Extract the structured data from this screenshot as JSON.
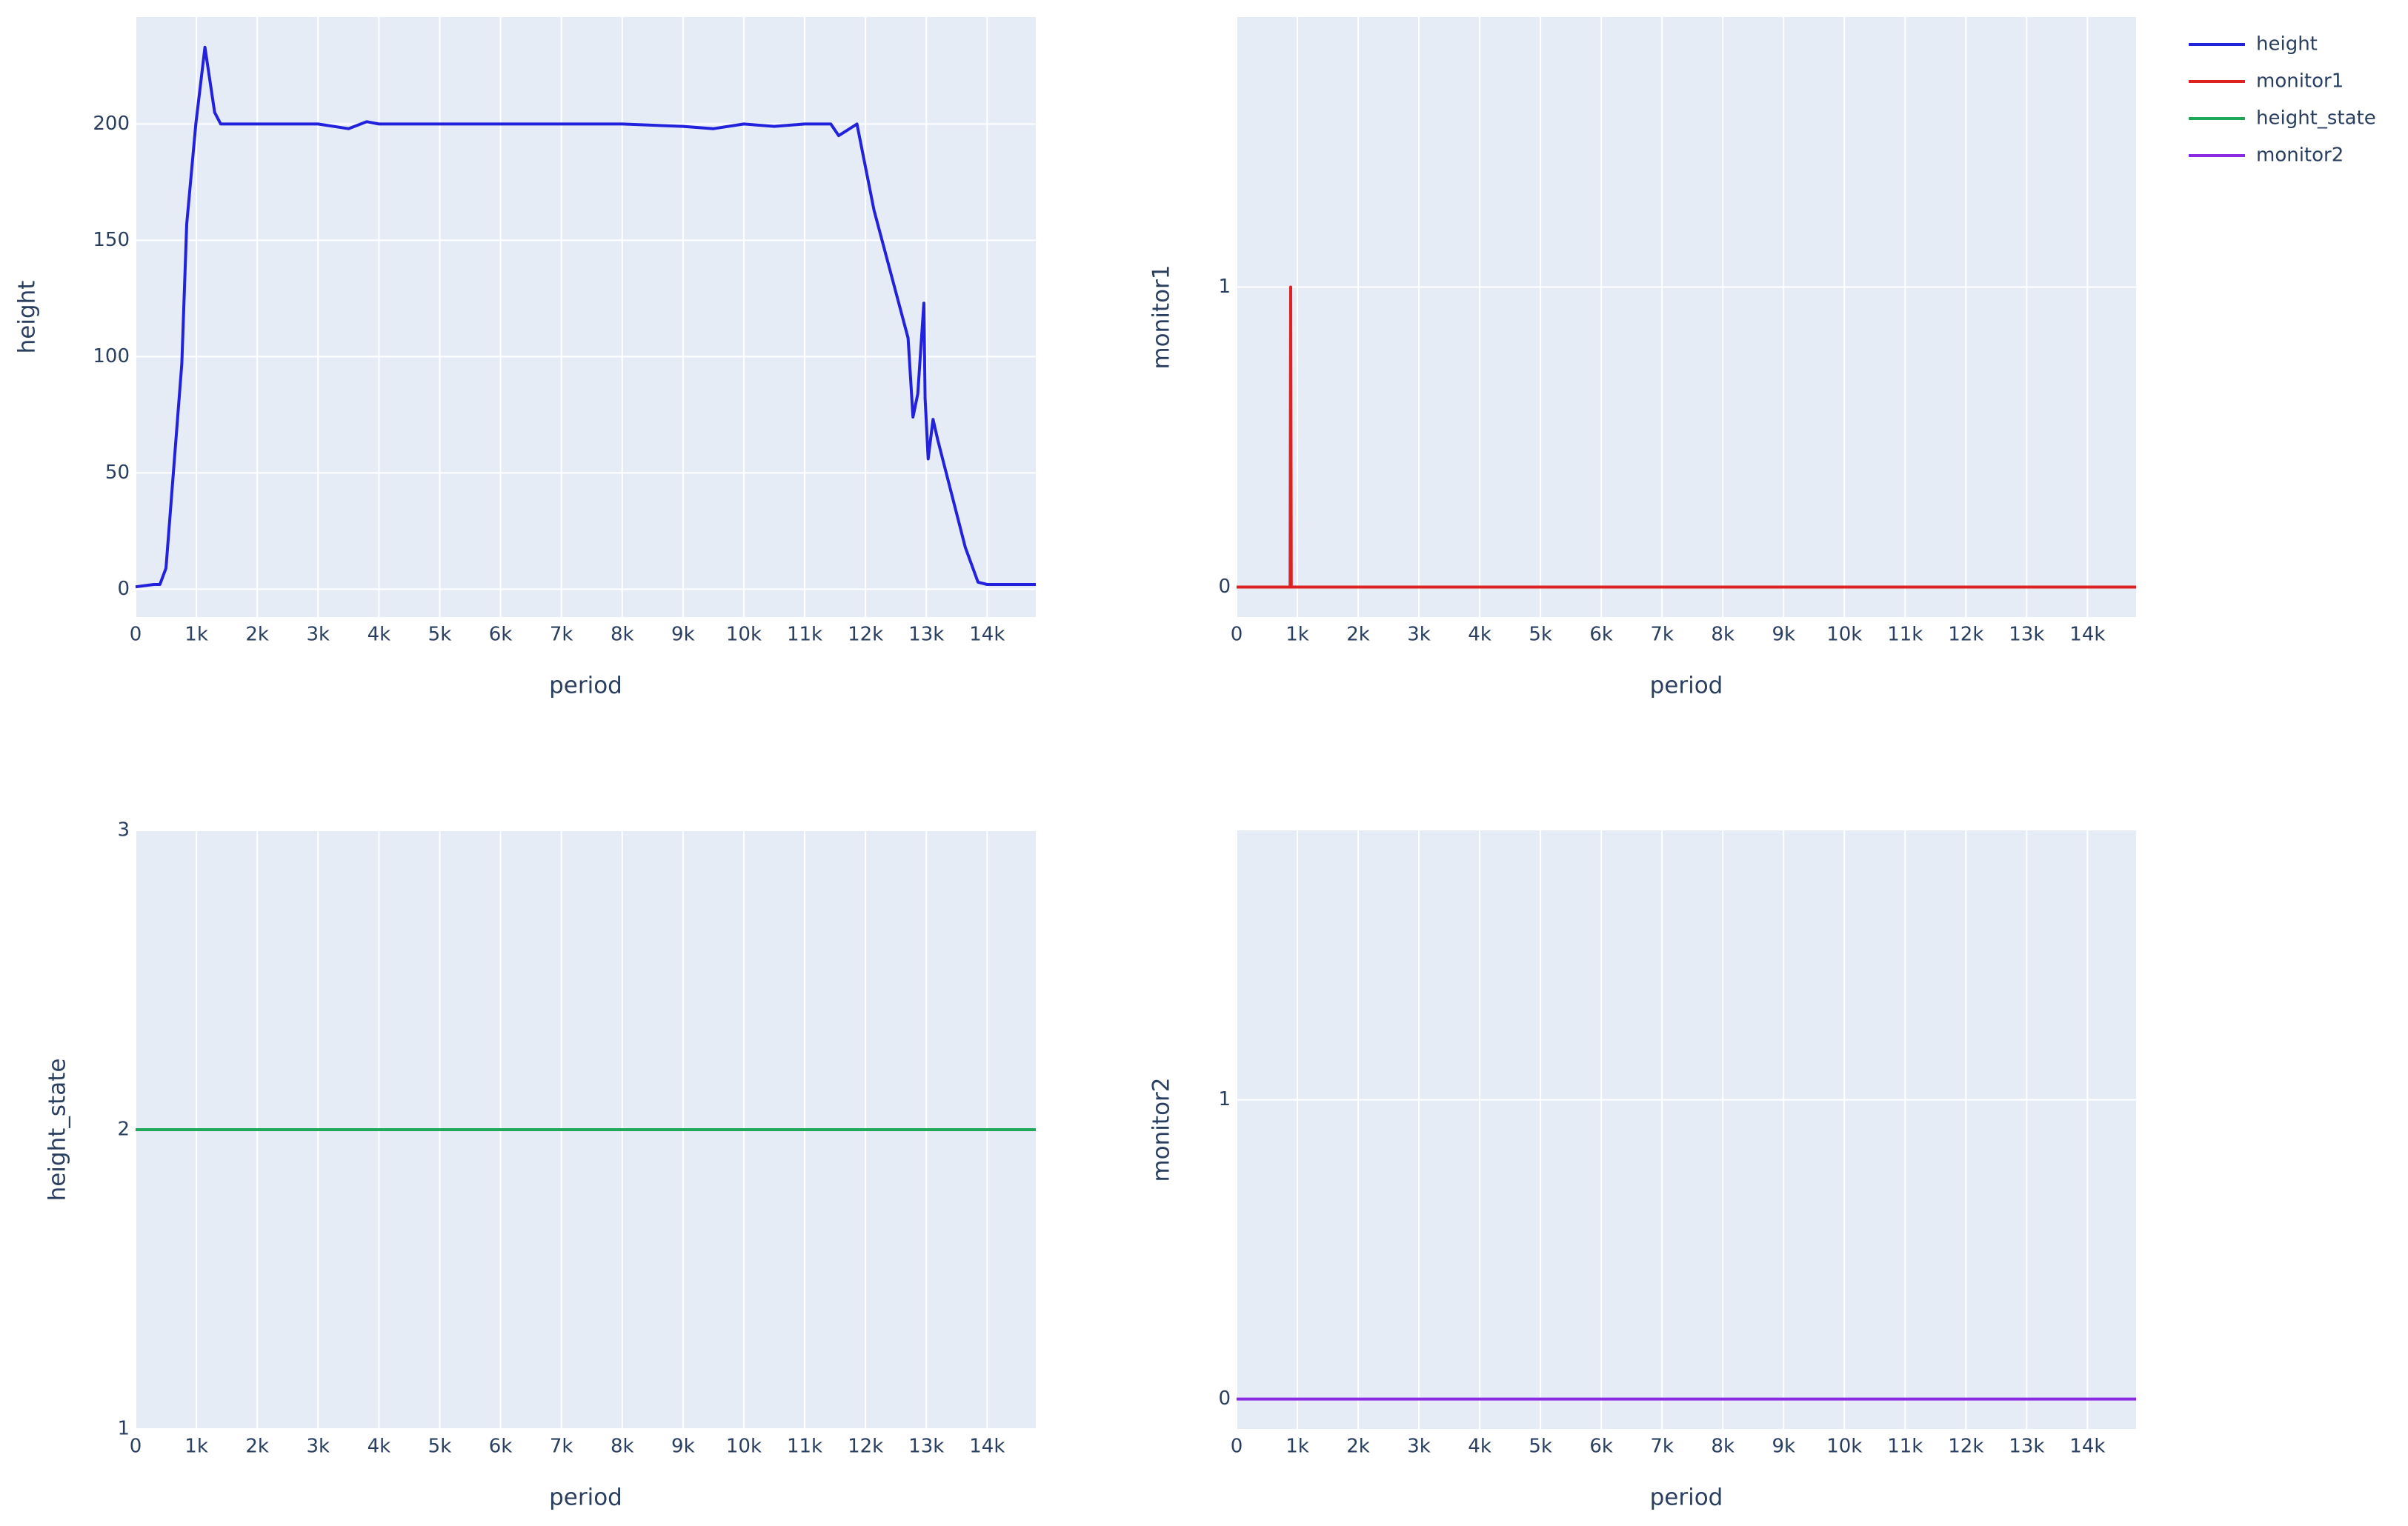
{
  "chart_data": [
    {
      "type": "line",
      "x_label": "period",
      "y_label": "height",
      "x": [
        0,
        300,
        400,
        500,
        760,
        840,
        990,
        1140,
        1300,
        1400,
        2000,
        3000,
        3500,
        3800,
        4000,
        5000,
        6000,
        7000,
        8000,
        9000,
        9500,
        10000,
        10500,
        11000,
        11430,
        11560,
        11860,
        12140,
        12700,
        12780,
        12860,
        12960,
        12980,
        13030,
        13110,
        13190,
        13640,
        13850,
        14000,
        14800
      ],
      "series": [
        {
          "name": "height",
          "color": "#2222dd",
          "values": [
            1,
            2,
            2,
            9,
            97,
            157,
            200,
            233,
            205,
            200,
            200,
            200,
            198,
            201,
            200,
            200,
            200,
            200,
            200,
            199,
            198,
            200,
            199,
            200,
            200,
            195,
            200,
            163,
            108,
            74,
            84,
            123,
            82,
            56,
            73,
            64,
            18,
            3,
            2,
            2
          ]
        }
      ],
      "xlim": [
        0,
        14800
      ],
      "ylim": [
        -12,
        246
      ],
      "xticks": [
        0,
        {
          "value": 1000,
          "label": "1k"
        },
        {
          "value": 2000,
          "label": "2k"
        },
        {
          "value": 3000,
          "label": "3k"
        },
        {
          "value": 4000,
          "label": "4k"
        },
        {
          "value": 5000,
          "label": "5k"
        },
        {
          "value": 6000,
          "label": "6k"
        },
        {
          "value": 7000,
          "label": "7k"
        },
        {
          "value": 8000,
          "label": "8k"
        },
        {
          "value": 9000,
          "label": "9k"
        },
        {
          "value": 10000,
          "label": "10k"
        },
        {
          "value": 11000,
          "label": "11k"
        },
        {
          "value": 12000,
          "label": "12k"
        },
        {
          "value": 13000,
          "label": "13k"
        },
        {
          "value": 14000,
          "label": "14k"
        }
      ],
      "yticks": [
        0,
        50,
        100,
        150,
        200
      ],
      "grid": true
    },
    {
      "type": "line",
      "x_label": "period",
      "y_label": "monitor1",
      "x": [
        0,
        880,
        890,
        900,
        14800
      ],
      "series": [
        {
          "name": "monitor1",
          "color": "#dd2222",
          "values": [
            0,
            0,
            1,
            0,
            0
          ]
        }
      ],
      "xlim": [
        0,
        14800
      ],
      "ylim": [
        -0.1,
        1.9
      ],
      "xticks": [
        0,
        {
          "value": 1000,
          "label": "1k"
        },
        {
          "value": 2000,
          "label": "2k"
        },
        {
          "value": 3000,
          "label": "3k"
        },
        {
          "value": 4000,
          "label": "4k"
        },
        {
          "value": 5000,
          "label": "5k"
        },
        {
          "value": 6000,
          "label": "6k"
        },
        {
          "value": 7000,
          "label": "7k"
        },
        {
          "value": 8000,
          "label": "8k"
        },
        {
          "value": 9000,
          "label": "9k"
        },
        {
          "value": 10000,
          "label": "10k"
        },
        {
          "value": 11000,
          "label": "11k"
        },
        {
          "value": 12000,
          "label": "12k"
        },
        {
          "value": 13000,
          "label": "13k"
        },
        {
          "value": 14000,
          "label": "14k"
        }
      ],
      "yticks": [
        0,
        1
      ],
      "grid": true
    },
    {
      "type": "line",
      "x_label": "period",
      "y_label": "height_state",
      "x": [
        0,
        14800
      ],
      "series": [
        {
          "name": "height_state",
          "color": "#1fa85a",
          "values": [
            2,
            2
          ]
        }
      ],
      "xlim": [
        0,
        14800
      ],
      "ylim": [
        1,
        3
      ],
      "xticks": [
        0,
        {
          "value": 1000,
          "label": "1k"
        },
        {
          "value": 2000,
          "label": "2k"
        },
        {
          "value": 3000,
          "label": "3k"
        },
        {
          "value": 4000,
          "label": "4k"
        },
        {
          "value": 5000,
          "label": "5k"
        },
        {
          "value": 6000,
          "label": "6k"
        },
        {
          "value": 7000,
          "label": "7k"
        },
        {
          "value": 8000,
          "label": "8k"
        },
        {
          "value": 9000,
          "label": "9k"
        },
        {
          "value": 10000,
          "label": "10k"
        },
        {
          "value": 11000,
          "label": "11k"
        },
        {
          "value": 12000,
          "label": "12k"
        },
        {
          "value": 13000,
          "label": "13k"
        },
        {
          "value": 14000,
          "label": "14k"
        }
      ],
      "yticks": [
        1,
        2,
        3
      ],
      "grid": true
    },
    {
      "type": "line",
      "x_label": "period",
      "y_label": "monitor2",
      "x": [
        0,
        14800
      ],
      "series": [
        {
          "name": "monitor2",
          "color": "#8a2be2",
          "values": [
            0,
            0
          ]
        }
      ],
      "xlim": [
        0,
        14800
      ],
      "ylim": [
        -0.1,
        1.9
      ],
      "xticks": [
        0,
        {
          "value": 1000,
          "label": "1k"
        },
        {
          "value": 2000,
          "label": "2k"
        },
        {
          "value": 3000,
          "label": "3k"
        },
        {
          "value": 4000,
          "label": "4k"
        },
        {
          "value": 5000,
          "label": "5k"
        },
        {
          "value": 6000,
          "label": "6k"
        },
        {
          "value": 7000,
          "label": "7k"
        },
        {
          "value": 8000,
          "label": "8k"
        },
        {
          "value": 9000,
          "label": "9k"
        },
        {
          "value": 10000,
          "label": "10k"
        },
        {
          "value": 11000,
          "label": "11k"
        },
        {
          "value": 12000,
          "label": "12k"
        },
        {
          "value": 13000,
          "label": "13k"
        },
        {
          "value": 14000,
          "label": "14k"
        }
      ],
      "yticks": [
        0,
        1
      ],
      "grid": true
    }
  ]
}
